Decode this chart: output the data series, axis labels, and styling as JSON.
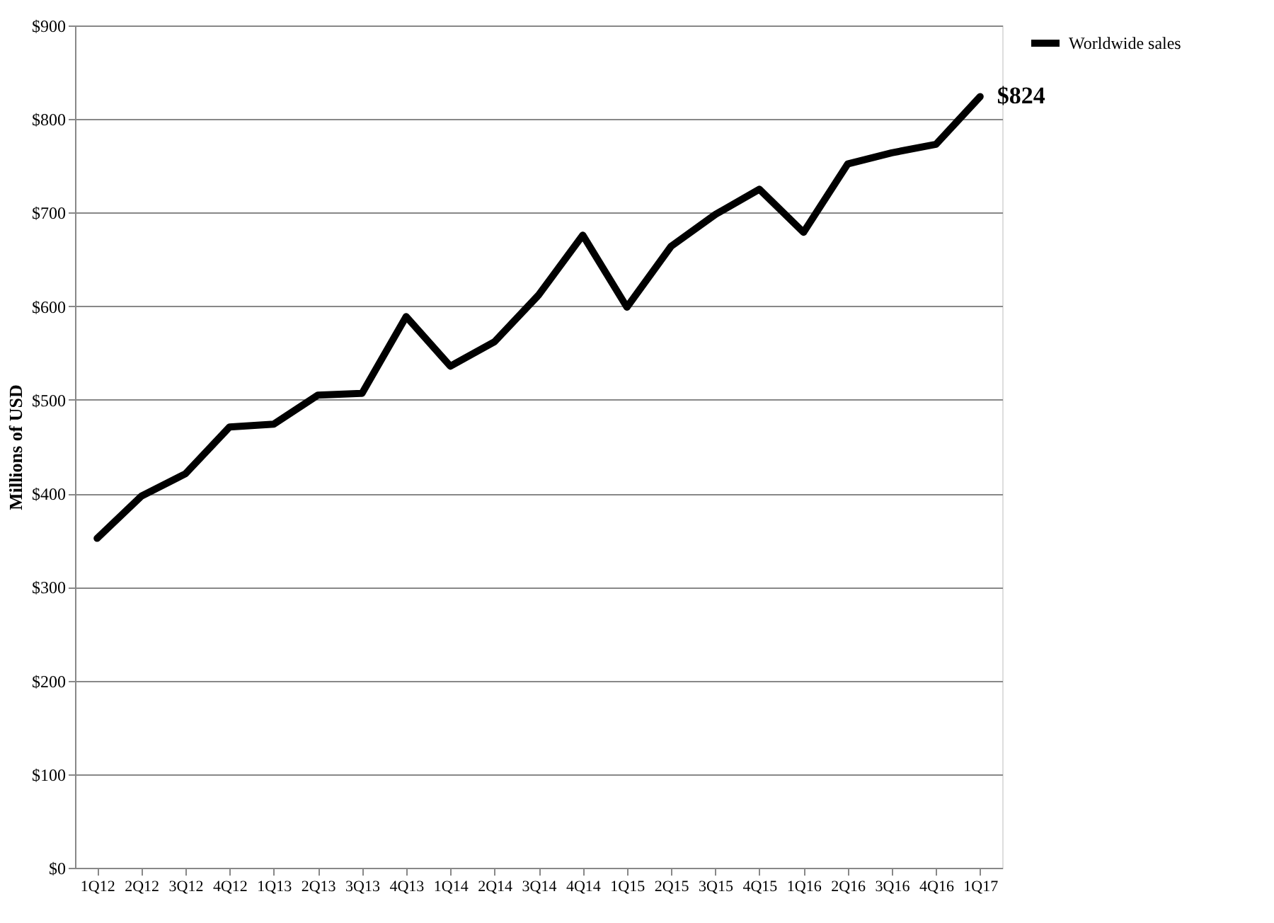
{
  "chart_data": {
    "type": "line",
    "ylabel": "Millions of USD",
    "categories": [
      "1Q12",
      "2Q12",
      "3Q12",
      "4Q12",
      "1Q13",
      "2Q13",
      "3Q13",
      "4Q13",
      "1Q14",
      "2Q14",
      "3Q14",
      "4Q14",
      "1Q15",
      "2Q15",
      "3Q15",
      "4Q15",
      "1Q16",
      "2Q16",
      "3Q16",
      "4Q16",
      "1Q17"
    ],
    "series": [
      {
        "name": "Worldwide sales",
        "color": "#000000",
        "values": [
          352,
          397,
          421,
          471,
          474,
          505,
          507,
          589,
          536,
          562,
          612,
          676,
          599,
          664,
          698,
          725,
          679,
          752,
          764,
          773,
          824
        ]
      }
    ],
    "ylim": [
      0,
      900
    ],
    "yticks": [
      {
        "value": 0,
        "label": "$0"
      },
      {
        "value": 100,
        "label": "$100"
      },
      {
        "value": 200,
        "label": "$200"
      },
      {
        "value": 300,
        "label": "$300"
      },
      {
        "value": 400,
        "label": "$400"
      },
      {
        "value": 500,
        "label": "$500"
      },
      {
        "value": 600,
        "label": "$600"
      },
      {
        "value": 700,
        "label": "$700"
      },
      {
        "value": 800,
        "label": "$800"
      },
      {
        "value": 900,
        "label": "$900"
      }
    ],
    "annotations": [
      {
        "text": "$824",
        "x": "1Q17",
        "y": 824
      }
    ],
    "grid": "y",
    "legend": "right",
    "marker": "none",
    "line_style": "solid"
  }
}
